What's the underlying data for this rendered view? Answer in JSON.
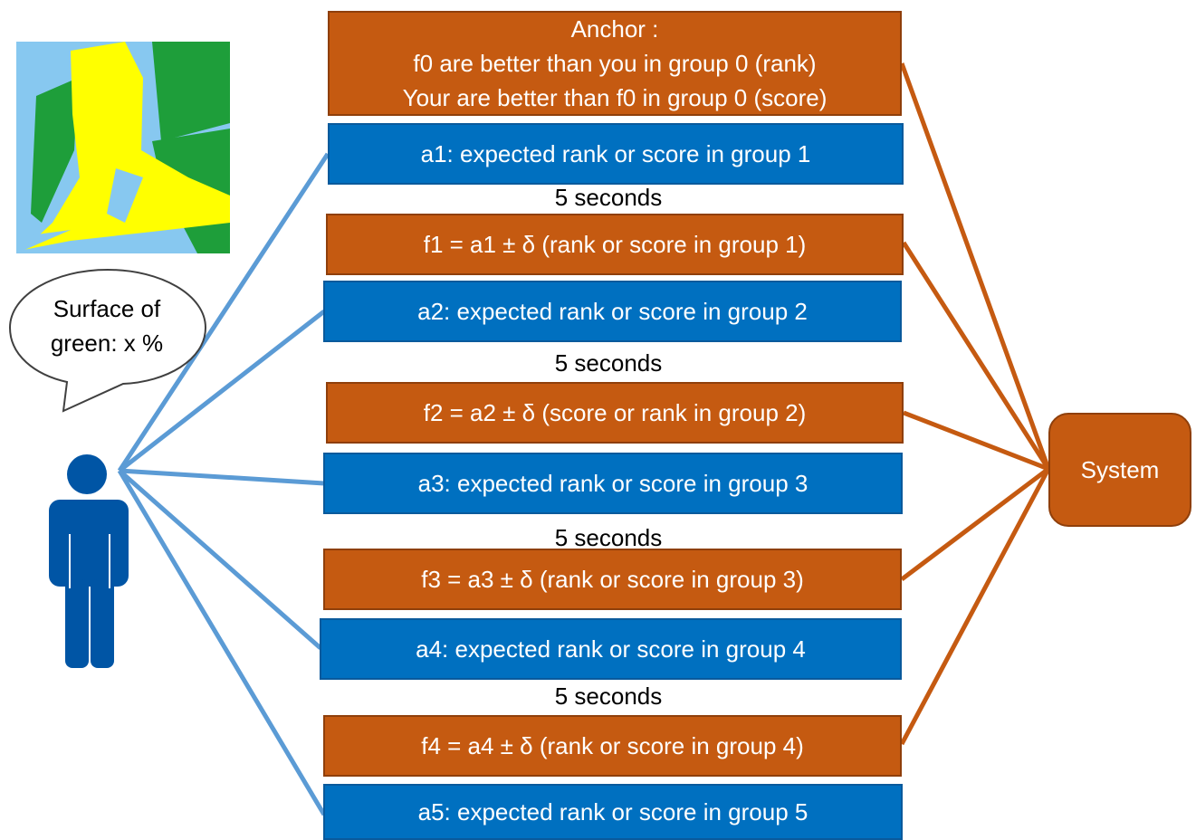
{
  "anchor": {
    "title": "Anchor :",
    "line1": "f0 are better than you in group 0 (rank)",
    "line2": "Your are better than f0 in group 0 (score)"
  },
  "steps": [
    {
      "id": "a1",
      "label": "a1: expected rank or score in group 1"
    },
    {
      "id": "gap1",
      "label": "5 seconds"
    },
    {
      "id": "f1",
      "label": "f1 = a1 ± δ (rank or score in group 1)"
    },
    {
      "id": "a2",
      "label": "a2: expected rank or score in group 2"
    },
    {
      "id": "gap2",
      "label": "5 seconds"
    },
    {
      "id": "f2",
      "label": "f2 = a2 ± δ (score or rank in group 2)"
    },
    {
      "id": "a3",
      "label": "a3: expected rank or score in group 3"
    },
    {
      "id": "gap3",
      "label": "5 seconds"
    },
    {
      "id": "f3",
      "label": "f3 = a3 ± δ (rank or score in group 3)"
    },
    {
      "id": "a4",
      "label": "a4: expected rank or score in group 4"
    },
    {
      "id": "gap4",
      "label": "5 seconds"
    },
    {
      "id": "f4",
      "label": "f4 = a4 ± δ (rank or score in group 4)"
    },
    {
      "id": "a5",
      "label": "a5: expected rank or score in group 5"
    }
  ],
  "system": {
    "label": "System"
  },
  "bubble": {
    "label": "Surface of green: x %"
  },
  "colors": {
    "orange": "#c55a11",
    "blue": "#0070c0",
    "person": "#0055a5",
    "user_line": "#5b9bd5",
    "system_line": "#c55a11",
    "stimulus_green": "#1e9e3a",
    "stimulus_yellow": "#ffff00",
    "stimulus_lightblue": "#87c8f0"
  }
}
